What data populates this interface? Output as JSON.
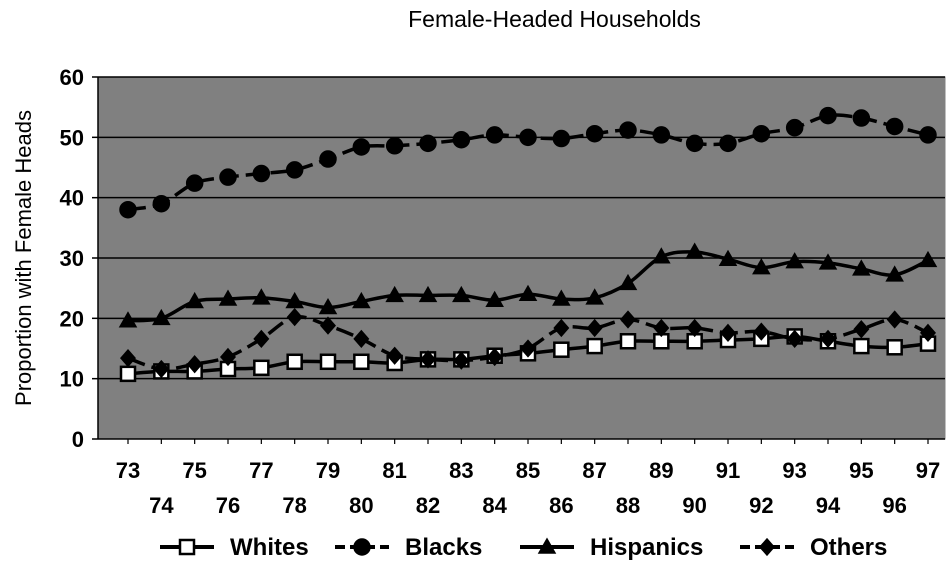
{
  "chart_data": {
    "type": "line",
    "title": "Female-Headed Households",
    "xlabel": "",
    "ylabel": "Proportion with Female Heads",
    "ylim": [
      0,
      60
    ],
    "yticks": [
      0,
      10,
      20,
      30,
      40,
      50,
      60
    ],
    "categories": [
      "73",
      "74",
      "75",
      "76",
      "77",
      "78",
      "79",
      "80",
      "81",
      "82",
      "83",
      "84",
      "85",
      "86",
      "87",
      "88",
      "89",
      "90",
      "91",
      "92",
      "93",
      "94",
      "95",
      "96",
      "97"
    ],
    "grid": true,
    "legend": "bottom",
    "plot_background": "#808080",
    "series": [
      {
        "name": "Whites",
        "marker": "square",
        "dash": "solid",
        "values": [
          10.8,
          11.2,
          11.2,
          11.6,
          11.8,
          12.8,
          12.8,
          12.8,
          12.6,
          13.2,
          13.2,
          13.8,
          14.2,
          14.8,
          15.4,
          16.2,
          16.2,
          16.2,
          16.4,
          16.6,
          17.0,
          16.2,
          15.4,
          15.2,
          15.8
        ]
      },
      {
        "name": "Blacks",
        "marker": "circle",
        "dash": "dashed",
        "values": [
          38.0,
          39.0,
          42.4,
          43.4,
          44.0,
          44.6,
          46.4,
          48.4,
          48.6,
          49.0,
          49.6,
          50.4,
          50.0,
          49.8,
          50.6,
          51.2,
          50.4,
          49.0,
          49.0,
          50.6,
          51.6,
          53.6,
          53.2,
          51.8,
          50.4
        ]
      },
      {
        "name": "Hispanics",
        "marker": "triangle",
        "dash": "solid",
        "values": [
          19.6,
          20.0,
          22.8,
          23.2,
          23.4,
          22.8,
          21.8,
          22.8,
          23.8,
          23.8,
          23.8,
          23.0,
          24.0,
          23.2,
          23.4,
          25.8,
          30.2,
          31.0,
          29.8,
          28.4,
          29.4,
          29.2,
          28.2,
          27.2,
          29.6
        ]
      },
      {
        "name": "Others",
        "marker": "diamond",
        "dash": "dashed",
        "values": [
          13.4,
          11.6,
          12.4,
          13.6,
          16.6,
          20.2,
          18.8,
          16.6,
          13.8,
          13.2,
          13.0,
          13.6,
          15.0,
          18.4,
          18.4,
          19.8,
          18.4,
          18.4,
          17.6,
          17.8,
          16.6,
          16.6,
          18.2,
          19.8,
          17.6
        ]
      }
    ]
  }
}
